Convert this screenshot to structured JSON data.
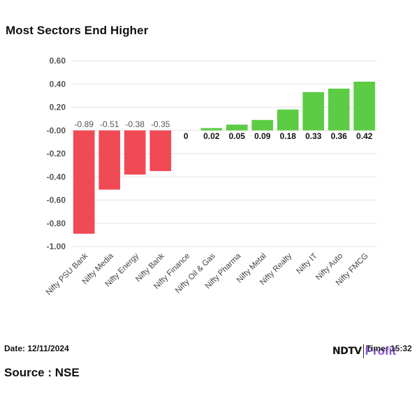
{
  "title": "Most Sectors End Higher",
  "footer": {
    "date": "Date: 12/11/2024",
    "time": "Time: 15:32",
    "source": "Source : NSE",
    "logo_text": "NDTV Profit",
    "logo_part1": "NDTV",
    "logo_part2": "Profit"
  },
  "colors": {
    "negative": "#f04a54",
    "positive": "#5dcc45",
    "grid": "#e3e3e3",
    "logo_accent": "#8a52d6"
  },
  "chart_data": {
    "type": "bar",
    "title": "Most Sectors End Higher",
    "xlabel": "",
    "ylabel": "",
    "ylim": [
      -1.0,
      0.6
    ],
    "yticks": [
      "0.60",
      "0.40",
      "0.20",
      "-0.00",
      "-0.20",
      "-0.40",
      "-0.60",
      "-0.80",
      "-1.00"
    ],
    "ytick_values": [
      0.6,
      0.4,
      0.2,
      0.0,
      -0.2,
      -0.4,
      -0.6,
      -0.8,
      -1.0
    ],
    "grid": true,
    "categories": [
      "Nifty PSU Bank",
      "Nifty Media",
      "Nifty Energy",
      "Nifty Bank",
      "Nifty Finance",
      "Nifty Oil & Gas",
      "Nifty Pharma",
      "Nifty Metal",
      "Nifty Realty",
      "Nifty IT",
      "Nifty Auto",
      "Nifty FMCG"
    ],
    "values": [
      -0.89,
      -0.51,
      -0.38,
      -0.35,
      0,
      0.02,
      0.05,
      0.09,
      0.18,
      0.33,
      0.36,
      0.42
    ],
    "data_labels": [
      "-0.89",
      "-0.51",
      "-0.38",
      "-0.35",
      "0",
      "0.02",
      "0.05",
      "0.09",
      "0.18",
      "0.33",
      "0.36",
      "0.42"
    ]
  }
}
